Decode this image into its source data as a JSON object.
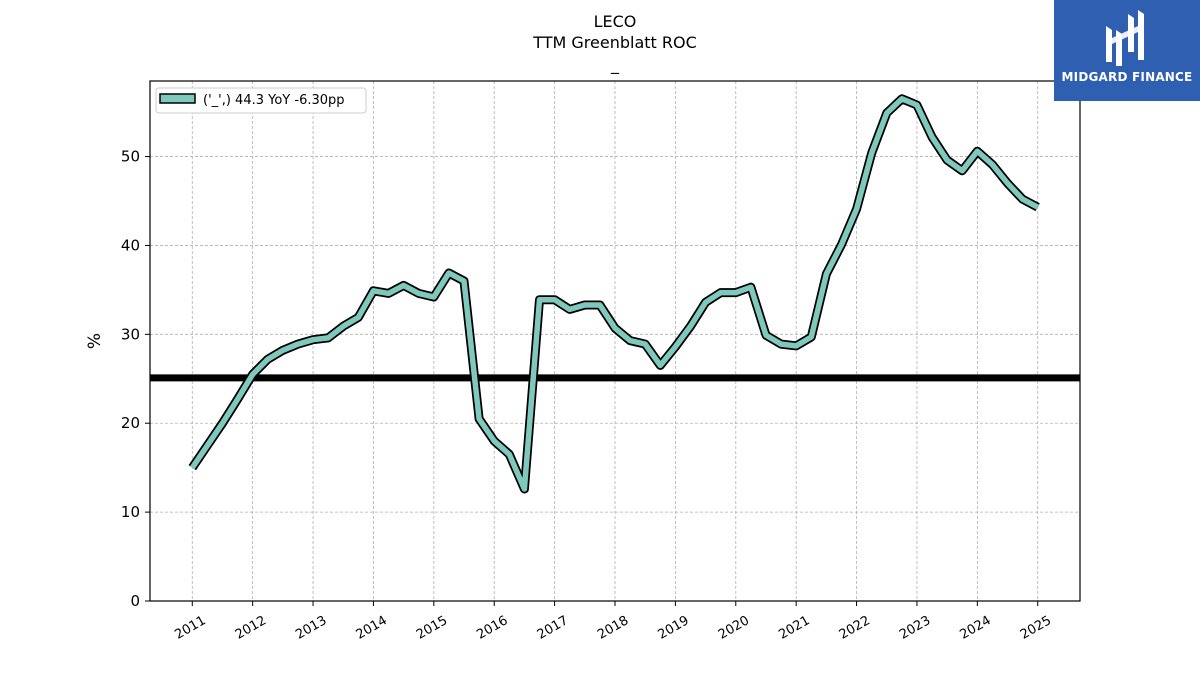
{
  "chart_data": {
    "type": "line",
    "title": "LECO",
    "subtitle": "TTM Greenblatt ROC",
    "subtitle2": "_",
    "xlabel": "",
    "ylabel": "%",
    "ylim": [
      0,
      58.5
    ],
    "xlim": [
      2010.3,
      2025.7
    ],
    "yticks": [
      0,
      10,
      20,
      30,
      40,
      50
    ],
    "xticks": [
      "2011",
      "2012",
      "2013",
      "2014",
      "2015",
      "2016",
      "2017",
      "2018",
      "2019",
      "2020",
      "2021",
      "2022",
      "2023",
      "2024",
      "2025"
    ],
    "grid": true,
    "legend_position": "top-left",
    "reference_line": {
      "y": 25.1,
      "color": "#000000"
    },
    "series": [
      {
        "name": "('_',) 44.3 YoY -6.30pp",
        "color": "#7fc8bc",
        "x": [
          2011.0,
          2011.25,
          2011.5,
          2011.75,
          2012.0,
          2012.25,
          2012.5,
          2012.75,
          2013.0,
          2013.25,
          2013.5,
          2013.75,
          2014.0,
          2014.25,
          2014.5,
          2014.75,
          2015.0,
          2015.25,
          2015.5,
          2015.75,
          2016.0,
          2016.25,
          2016.5,
          2016.75,
          2017.0,
          2017.25,
          2017.5,
          2017.75,
          2018.0,
          2018.25,
          2018.5,
          2018.75,
          2019.0,
          2019.25,
          2019.5,
          2019.75,
          2020.0,
          2020.25,
          2020.5,
          2020.75,
          2021.0,
          2021.25,
          2021.5,
          2021.75,
          2022.0,
          2022.25,
          2022.5,
          2022.75,
          2023.0,
          2023.25,
          2023.5,
          2023.75,
          2024.0,
          2024.25,
          2024.5,
          2024.75,
          2025.0
        ],
        "values": [
          15.0,
          17.5,
          20.0,
          22.7,
          25.5,
          27.2,
          28.2,
          28.9,
          29.4,
          29.6,
          30.9,
          31.9,
          34.9,
          34.6,
          35.5,
          34.6,
          34.2,
          36.9,
          36.0,
          20.5,
          18.0,
          16.5,
          12.6,
          33.9,
          33.9,
          32.8,
          33.3,
          33.3,
          30.7,
          29.3,
          28.9,
          26.5,
          28.6,
          30.9,
          33.6,
          34.7,
          34.7,
          35.3,
          29.9,
          28.9,
          28.7,
          29.7,
          36.8,
          40.1,
          44.1,
          50.4,
          54.9,
          56.5,
          55.8,
          52.2,
          49.6,
          48.4,
          50.6,
          49.1,
          47.0,
          45.2,
          44.3
        ]
      }
    ]
  },
  "logo": {
    "brand": "MIDGARD FINANCE"
  }
}
